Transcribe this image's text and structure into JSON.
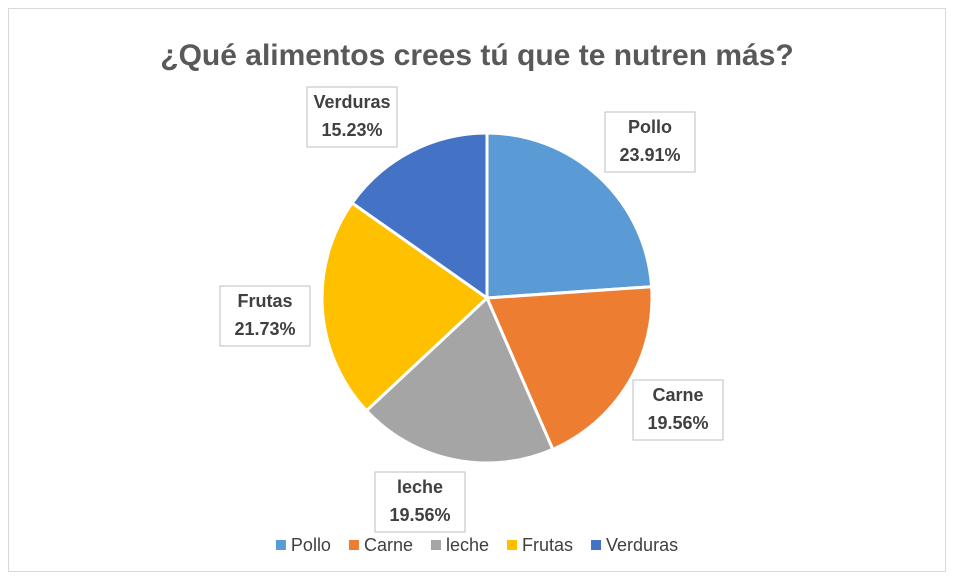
{
  "chart_data": {
    "type": "pie",
    "title": "¿Qué alimentos crees tú que te nutren más?",
    "categories": [
      "Pollo",
      "Carne",
      "leche",
      "Frutas",
      "Verduras"
    ],
    "values": [
      23.91,
      19.56,
      19.56,
      21.73,
      15.23
    ],
    "value_labels": [
      "23.91%",
      "19.56%",
      "19.56%",
      "21.73%",
      "15.23%"
    ],
    "colors": [
      "#5b9bd5",
      "#ed7d31",
      "#a5a5a5",
      "#ffc000",
      "#4472c4"
    ],
    "legend": "bottom"
  }
}
